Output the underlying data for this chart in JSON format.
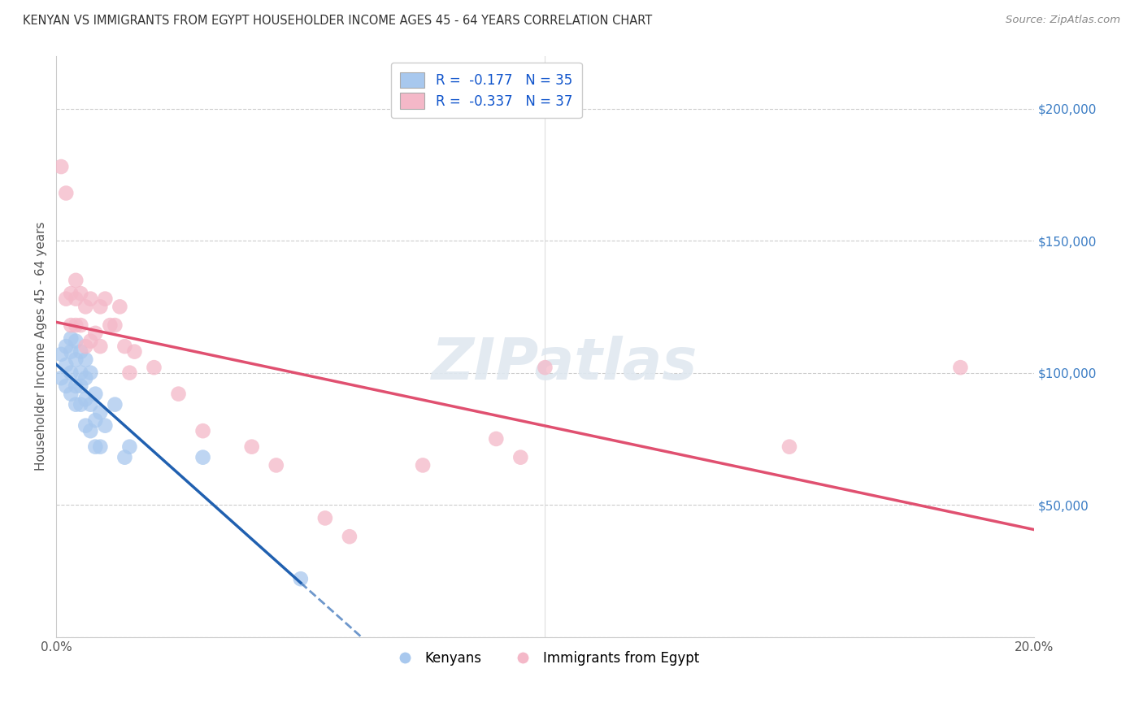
{
  "title": "KENYAN VS IMMIGRANTS FROM EGYPT HOUSEHOLDER INCOME AGES 45 - 64 YEARS CORRELATION CHART",
  "source": "Source: ZipAtlas.com",
  "ylabel": "Householder Income Ages 45 - 64 years",
  "legend_label_1": "Kenyans",
  "legend_label_2": "Immigrants from Egypt",
  "R1": -0.177,
  "N1": 35,
  "R2": -0.337,
  "N2": 37,
  "color_blue": "#A8C8EE",
  "color_pink": "#F4B8C8",
  "color_blue_line": "#2060B0",
  "color_pink_line": "#E05070",
  "xlim": [
    0.0,
    0.2
  ],
  "ylim": [
    0,
    220000
  ],
  "yticks": [
    0,
    50000,
    100000,
    150000,
    200000
  ],
  "ytick_labels": [
    "",
    "$50,000",
    "$100,000",
    "$150,000",
    "$200,000"
  ],
  "xticks": [
    0.0,
    0.05,
    0.1,
    0.15,
    0.2
  ],
  "xtick_labels": [
    "0.0%",
    "",
    "",
    "",
    "20.0%"
  ],
  "background_color": "#FFFFFF",
  "watermark": "ZIPatlas",
  "kenyans_x": [
    0.001,
    0.001,
    0.002,
    0.002,
    0.002,
    0.003,
    0.003,
    0.003,
    0.003,
    0.004,
    0.004,
    0.004,
    0.004,
    0.005,
    0.005,
    0.005,
    0.005,
    0.006,
    0.006,
    0.006,
    0.006,
    0.007,
    0.007,
    0.007,
    0.008,
    0.008,
    0.008,
    0.009,
    0.009,
    0.01,
    0.012,
    0.014,
    0.015,
    0.03,
    0.05
  ],
  "kenyans_y": [
    107000,
    98000,
    110000,
    103000,
    95000,
    113000,
    108000,
    100000,
    92000,
    112000,
    105000,
    95000,
    88000,
    108000,
    100000,
    95000,
    88000,
    105000,
    98000,
    90000,
    80000,
    100000,
    88000,
    78000,
    92000,
    82000,
    72000,
    85000,
    72000,
    80000,
    88000,
    68000,
    72000,
    68000,
    22000
  ],
  "egypt_x": [
    0.001,
    0.002,
    0.002,
    0.003,
    0.003,
    0.004,
    0.004,
    0.004,
    0.005,
    0.005,
    0.006,
    0.006,
    0.007,
    0.007,
    0.008,
    0.009,
    0.009,
    0.01,
    0.011,
    0.012,
    0.013,
    0.014,
    0.015,
    0.016,
    0.02,
    0.025,
    0.03,
    0.04,
    0.045,
    0.055,
    0.06,
    0.075,
    0.09,
    0.095,
    0.1,
    0.15,
    0.185
  ],
  "egypt_y": [
    178000,
    168000,
    128000,
    130000,
    118000,
    135000,
    128000,
    118000,
    130000,
    118000,
    125000,
    110000,
    128000,
    112000,
    115000,
    125000,
    110000,
    128000,
    118000,
    118000,
    125000,
    110000,
    100000,
    108000,
    102000,
    92000,
    78000,
    72000,
    65000,
    45000,
    38000,
    65000,
    75000,
    68000,
    102000,
    72000,
    102000
  ]
}
